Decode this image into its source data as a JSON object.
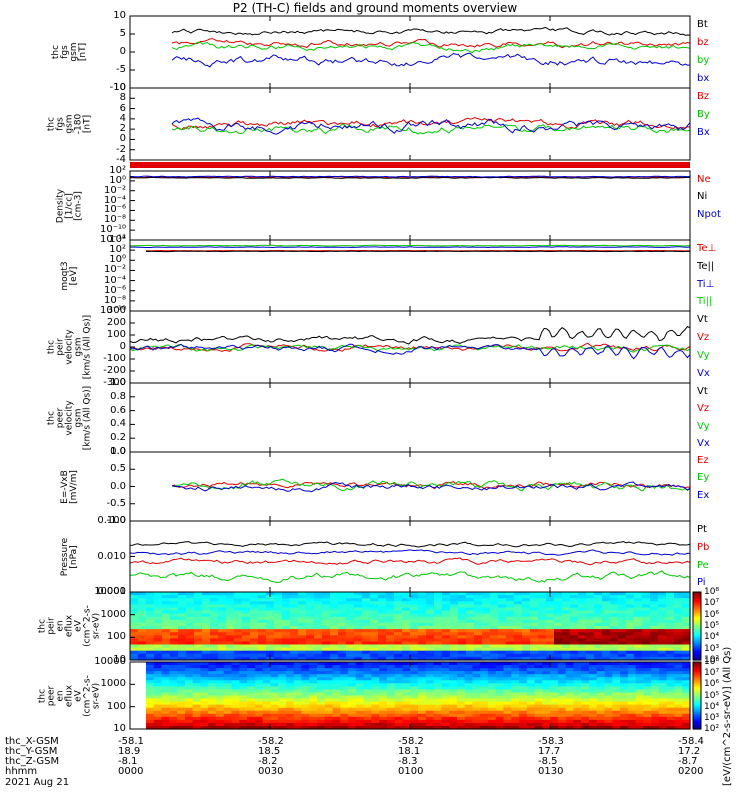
{
  "title": "P2 (TH-C) fields and ground moments overview",
  "date_label": "2021 Aug 21",
  "ephemeris": {
    "rows": [
      {
        "name": "thc_X-GSM",
        "values": [
          "-58.1",
          "-58.2",
          "-58.2",
          "-58.3",
          "-58.4"
        ]
      },
      {
        "name": "thc_Y-GSM",
        "values": [
          "18.9",
          "18.5",
          "18.1",
          "17.7",
          "17.2"
        ]
      },
      {
        "name": "thc_Z-GSM",
        "values": [
          "-8.1",
          "-8.2",
          "-8.3",
          "-8.5",
          "-8.7"
        ]
      },
      {
        "name": "hhmm",
        "values": [
          "0000",
          "0030",
          "0100",
          "0130",
          "0200"
        ]
      }
    ]
  },
  "colors": {
    "black": "#000000",
    "red": "#e00000",
    "green": "#00c800",
    "blue": "#0000d0"
  },
  "panels": [
    {
      "id": "fgs",
      "ylabel": "thc\nfgs\ngsm\n[nT]",
      "ticks": [
        "10",
        "5",
        "0",
        "-5",
        "-10"
      ],
      "legend": [
        {
          "text": "Bt",
          "color": "black"
        },
        {
          "text": "bz",
          "color": "red"
        },
        {
          "text": "by",
          "color": "green"
        },
        {
          "text": "bx",
          "color": "blue"
        }
      ]
    },
    {
      "id": "fgs2",
      "ylabel": "thc\nfgs\ngsm\n-180\n[nT]",
      "ticks": [
        "10",
        "8",
        "6",
        "4",
        "2",
        "0",
        "-2",
        "-4"
      ],
      "legend": [
        {
          "text": "Bz",
          "color": "red"
        },
        {
          "text": "By",
          "color": "green"
        },
        {
          "text": "Bx",
          "color": "blue"
        }
      ]
    },
    {
      "id": "density",
      "ylabel": "Density\n[1/cc]\n[cm-3]",
      "ticks": [
        "10²",
        "10⁰",
        "10⁻²",
        "10⁻⁴",
        "10⁻⁶",
        "10⁻⁸",
        "10⁻¹⁰",
        "10⁻¹²"
      ],
      "legend": [
        {
          "text": "Ne",
          "color": "red"
        },
        {
          "text": "Ni",
          "color": "black"
        },
        {
          "text": "Npot",
          "color": "blue"
        }
      ]
    },
    {
      "id": "temp",
      "ylabel": "moqt3\n[eV]",
      "ticks": [
        "10⁴",
        "10²",
        "10⁰",
        "10⁻²",
        "10⁻⁴",
        "10⁻⁶",
        "10⁻⁸",
        "10⁻¹⁰"
      ],
      "legend": [
        {
          "text": "Te⊥",
          "color": "red"
        },
        {
          "text": "Te||",
          "color": "black"
        },
        {
          "text": "Ti⊥",
          "color": "blue"
        },
        {
          "text": "Ti||",
          "color": "green"
        }
      ]
    },
    {
      "id": "vi",
      "ylabel": "thc\npeir\nvelocity\ngsm\n[km/s (All Qs)]",
      "ticks": [
        "300",
        "200",
        "100",
        "0",
        "-100",
        "-200",
        "-300"
      ],
      "legend": [
        {
          "text": "Vt",
          "color": "black"
        },
        {
          "text": "Vz",
          "color": "red"
        },
        {
          "text": "Vy",
          "color": "green"
        },
        {
          "text": "Vx",
          "color": "blue"
        }
      ]
    },
    {
      "id": "ve",
      "ylabel": "thc\npeer\nvelocity\ngsm\n[km/s (All Qs)]",
      "ticks": [
        "1.0",
        "0.8",
        "0.6",
        "0.4",
        "0.2",
        "0.0"
      ],
      "legend": [
        {
          "text": "Vt",
          "color": "black"
        },
        {
          "text": "Vz",
          "color": "red"
        },
        {
          "text": "Vy",
          "color": "green"
        },
        {
          "text": "Vx",
          "color": "blue"
        }
      ]
    },
    {
      "id": "efield",
      "ylabel": "E=-VxB\n[mV/m]",
      "ticks": [
        "1.0",
        "0.5",
        "0.0",
        "-0.5",
        "-1.0"
      ],
      "legend": [
        {
          "text": "Ez",
          "color": "red"
        },
        {
          "text": "Ey",
          "color": "green"
        },
        {
          "text": "Ex",
          "color": "blue"
        }
      ]
    },
    {
      "id": "pressure",
      "ylabel": "Pressure\n[nPa]",
      "ticks": [
        "0.100",
        "0.010",
        "0.001"
      ],
      "legend": [
        {
          "text": "Pt",
          "color": "black"
        },
        {
          "text": "Pb",
          "color": "red"
        },
        {
          "text": "Pe",
          "color": "green"
        },
        {
          "text": "Pi",
          "color": "blue"
        }
      ]
    },
    {
      "id": "ispec",
      "ylabel": "thc\npeir\nen\neflux\neV\n(cm^2-s-\nsr-eV)",
      "ticks": [
        "10000",
        "1000",
        "100",
        "10"
      ],
      "legend": []
    },
    {
      "id": "espec",
      "ylabel": "thc\npeer\nen\neflux\neV\n(cm^2-s-\nsr-eV)",
      "ticks": [
        "10000",
        "1000",
        "100",
        "10"
      ],
      "legend": []
    }
  ],
  "colorbar": {
    "label": "[eV/(cm^2-s-sr-eV)] (All Qs)",
    "ion_ticks": [
      "10⁸",
      "10⁷",
      "10⁶",
      "10⁵",
      "10⁴",
      "10³",
      "10²"
    ],
    "electron_ticks": [
      "10⁸",
      "10⁷",
      "10⁶",
      "10⁵",
      "10⁴",
      "10³",
      "10²"
    ]
  },
  "chart_data": {
    "type": "line",
    "title": "P2 (TH-C) fields and ground moments overview",
    "x_tick_labels": [
      "0000",
      "0030",
      "0100",
      "0130",
      "0200"
    ],
    "series": [
      {
        "panel": "fgs",
        "name": "Bt",
        "y_mean": 4.5,
        "y_range": [
          2.5,
          7.5
        ]
      },
      {
        "panel": "fgs",
        "name": "bz",
        "y_mean": 1.5,
        "y_range": [
          -1,
          5
        ]
      },
      {
        "panel": "fgs",
        "name": "by",
        "y_mean": 0.5,
        "y_range": [
          -2,
          4
        ]
      },
      {
        "panel": "fgs",
        "name": "bx",
        "y_mean": -3.0,
        "y_range": [
          -6,
          1
        ]
      },
      {
        "panel": "fgs2",
        "name": "Bz",
        "y_mean": 2.0,
        "y_range": [
          -1,
          6
        ]
      },
      {
        "panel": "fgs2",
        "name": "By",
        "y_mean": 1.0,
        "y_range": [
          -3,
          4
        ]
      },
      {
        "panel": "fgs2",
        "name": "Bx",
        "y_mean": 1.5,
        "y_range": [
          -3,
          9
        ]
      },
      {
        "panel": "density",
        "name": "Ne",
        "y_mean": 0.1
      },
      {
        "panel": "density",
        "name": "Ni",
        "y_mean": 0.1
      },
      {
        "panel": "density",
        "name": "Npot",
        "y_mean": 0.2
      },
      {
        "panel": "temp",
        "name": "Te⊥",
        "y_mean": 300
      },
      {
        "panel": "temp",
        "name": "Ti⊥",
        "y_mean": 1500
      },
      {
        "panel": "vi",
        "name": "Vt",
        "y_mean": 60,
        "y_range": [
          0,
          200
        ]
      },
      {
        "panel": "vi",
        "name": "Vz",
        "y_mean": 10,
        "y_range": [
          -80,
          120
        ]
      },
      {
        "panel": "vi",
        "name": "Vy",
        "y_mean": -20,
        "y_range": [
          -120,
          80
        ]
      },
      {
        "panel": "vi",
        "name": "Vx",
        "y_mean": -20,
        "y_range": [
          -180,
          60
        ]
      },
      {
        "panel": "efield",
        "name": "Ez",
        "y_mean": 0.05,
        "y_range": [
          -0.2,
          0.7
        ]
      },
      {
        "panel": "efield",
        "name": "Ey",
        "y_mean": 0.05,
        "y_range": [
          -0.6,
          0.5
        ]
      },
      {
        "panel": "efield",
        "name": "Ex",
        "y_mean": -0.05,
        "y_range": [
          -0.4,
          0.4
        ]
      },
      {
        "panel": "pressure",
        "name": "Pt",
        "y_mean": 0.03
      },
      {
        "panel": "pressure",
        "name": "Pb",
        "y_mean": 0.008
      },
      {
        "panel": "pressure",
        "name": "Pe",
        "y_mean": 0.003
      },
      {
        "panel": "pressure",
        "name": "Pi",
        "y_mean": 0.014
      }
    ]
  }
}
